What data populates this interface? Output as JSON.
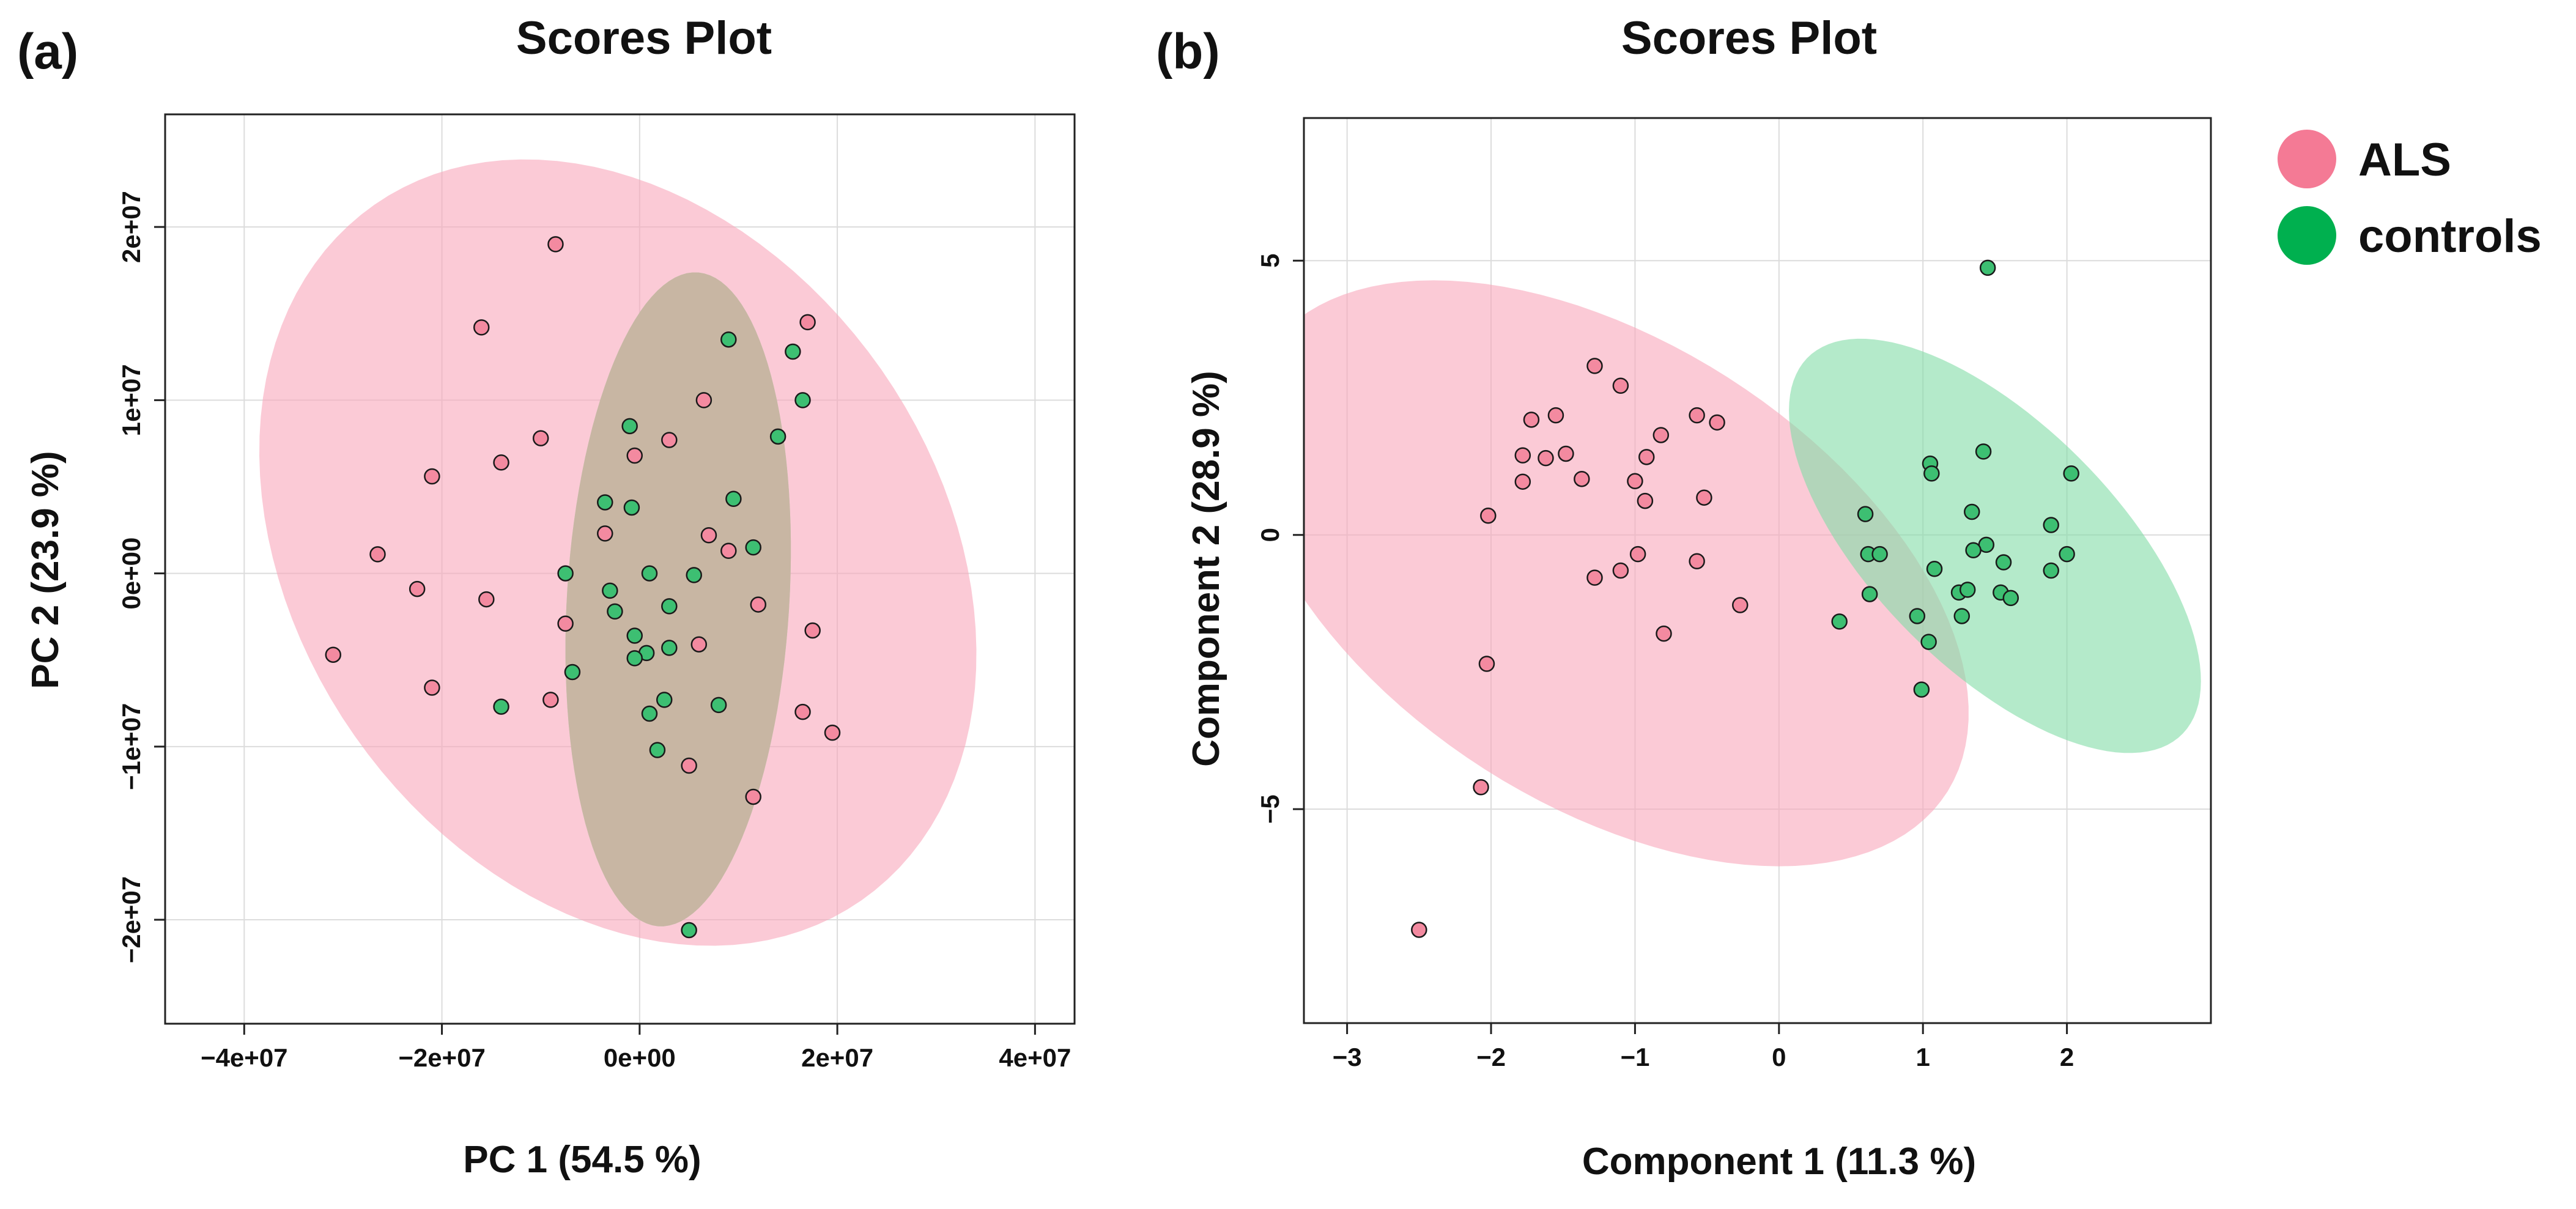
{
  "colors": {
    "ALS": "#f47a95",
    "controls": "#00b04f",
    "ALS_ellipse": "#f8a6ba",
    "controls_ellipse": "#82dca6",
    "overlap": "#c8b6a3",
    "ALS_point": "#f38aa0",
    "controls_point": "#3dbf72",
    "grid": "#dcdcdc"
  },
  "legend": {
    "items": [
      {
        "key": "ALS",
        "label": "ALS"
      },
      {
        "key": "controls",
        "label": "controls"
      }
    ]
  },
  "chart_data": [
    {
      "panel_label": "(a)",
      "type": "scatter",
      "title": "Scores Plot",
      "xlabel": "PC 1 (54.5 %)",
      "ylabel": "PC 2 (23.9 %)",
      "xlim": [
        -48000000.0,
        44000000.0
      ],
      "ylim": [
        -26000000.0,
        26500000.0
      ],
      "xticks": [
        -40000000.0,
        -20000000.0,
        0,
        20000000.0,
        40000000.0
      ],
      "xtick_labels": [
        "−4e+07",
        "−2e+07",
        "0e+00",
        "2e+07",
        "4e+07"
      ],
      "yticks": [
        -20000000.0,
        -10000000.0,
        0,
        10000000.0,
        20000000.0
      ],
      "ytick_labels": [
        "−2e+07",
        "−1e+07",
        "0e+00",
        "1e+07",
        "2e+07"
      ],
      "grid": true,
      "ellipses": [
        {
          "group": "ALS",
          "center": [
            -2200000.0,
            1200000.0
          ],
          "semi_axes": [
            37000000.0,
            21500000.0
          ],
          "angle_deg": -14
        },
        {
          "group": "controls",
          "center": [
            3900000.0,
            -1500000.0
          ],
          "semi_axes": [
            11200000.0,
            19000000.0
          ],
          "angle_deg": -8
        }
      ],
      "series": [
        {
          "name": "ALS",
          "points": [
            [
              -8500000.0,
              19000000.0
            ],
            [
              -16000000.0,
              14200000.0
            ],
            [
              17000000.0,
              14500000.0
            ],
            [
              6500000.0,
              10000000.0
            ],
            [
              -10000000.0,
              7800000.0
            ],
            [
              3000000.0,
              7700000.0
            ],
            [
              -14000000.0,
              6400000.0
            ],
            [
              -500000.0,
              6800000.0
            ],
            [
              -21000000.0,
              5600000.0
            ],
            [
              -3500000.0,
              2300000.0
            ],
            [
              7000000.0,
              2200000.0
            ],
            [
              9000000.0,
              1300000.0
            ],
            [
              -26500000.0,
              1100000.0
            ],
            [
              -22500000.0,
              -900000.0
            ],
            [
              -15500000.0,
              -1500000.0
            ],
            [
              12000000.0,
              -1800000.0
            ],
            [
              -7500000.0,
              -2900000.0
            ],
            [
              17500000.0,
              -3300000.0
            ],
            [
              6000000.0,
              -4100000.0
            ],
            [
              -31000000.0,
              -4700000.0
            ],
            [
              -21000000.0,
              -6600000.0
            ],
            [
              -9000000.0,
              -7300000.0
            ],
            [
              16500000.0,
              -8000000.0
            ],
            [
              19500000.0,
              -9200000.0
            ],
            [
              5000000.0,
              -11100000.0
            ],
            [
              11500000.0,
              -12900000.0
            ]
          ]
        },
        {
          "name": "controls",
          "points": [
            [
              9000000.0,
              13500000.0
            ],
            [
              15500000.0,
              12800000.0
            ],
            [
              16500000.0,
              10000000.0
            ],
            [
              -1000000.0,
              8500000.0
            ],
            [
              14000000.0,
              7900000.0
            ],
            [
              -3500000.0,
              4100000.0
            ],
            [
              9500000.0,
              4300000.0
            ],
            [
              -800000.0,
              3800000.0
            ],
            [
              11500000.0,
              1500000.0
            ],
            [
              -7500000.0,
              0
            ],
            [
              1000000.0,
              0
            ],
            [
              5500000.0,
              -100000.0
            ],
            [
              -3000000.0,
              -1000000.0
            ],
            [
              3000000.0,
              -1900000.0
            ],
            [
              -2500000.0,
              -2200000.0
            ],
            [
              -500000.0,
              -3600000.0
            ],
            [
              3000000.0,
              -4300000.0
            ],
            [
              700000.0,
              -4600000.0
            ],
            [
              -500000.0,
              -4900000.0
            ],
            [
              -6800000.0,
              -5700000.0
            ],
            [
              -14000000.0,
              -7700000.0
            ],
            [
              2500000.0,
              -7300000.0
            ],
            [
              8000000.0,
              -7600000.0
            ],
            [
              1000000.0,
              -8100000.0
            ],
            [
              1800000.0,
              -10200000.0
            ],
            [
              5000000.0,
              -20600000.0
            ]
          ]
        }
      ]
    },
    {
      "panel_label": "(b)",
      "type": "scatter",
      "title": "Scores Plot",
      "xlabel": "Component 1 (11.3 %)",
      "ylabel": "Component 2 (28.9 %)",
      "xlim": [
        -3.3,
        3.0
      ],
      "ylim": [
        -8.9,
        7.6
      ],
      "xticks": [
        -3,
        -2,
        -1,
        0,
        1,
        2
      ],
      "xtick_labels": [
        "−3",
        "−2",
        "−1",
        "0",
        "1",
        "2"
      ],
      "yticks": [
        -5,
        0,
        5
      ],
      "ytick_labels": [
        "−5",
        "0",
        "5"
      ],
      "grid": true,
      "ellipses": [
        {
          "group": "ALS",
          "center": [
            -1.2,
            -0.7
          ],
          "semi_axes": [
            2.15,
            5.5
          ],
          "angle_deg": 15
        },
        {
          "group": "controls",
          "center": [
            1.5,
            -0.2
          ],
          "semi_axes": [
            1.05,
            3.9
          ],
          "angle_deg": 15
        }
      ],
      "series": [
        {
          "name": "ALS",
          "points": [
            [
              -1.28,
              3.08
            ],
            [
              -1.1,
              2.72
            ],
            [
              -1.72,
              2.1
            ],
            [
              -1.55,
              2.18
            ],
            [
              -0.57,
              2.18
            ],
            [
              -0.43,
              2.05
            ],
            [
              -0.82,
              1.82
            ],
            [
              -1.78,
              1.45
            ],
            [
              -1.62,
              1.4
            ],
            [
              -1.48,
              1.48
            ],
            [
              -0.92,
              1.42
            ],
            [
              -1.37,
              1.02
            ],
            [
              -1.78,
              0.97
            ],
            [
              -1.0,
              0.98
            ],
            [
              -0.93,
              0.62
            ],
            [
              -0.52,
              0.68
            ],
            [
              -2.02,
              0.35
            ],
            [
              -0.98,
              -0.35
            ],
            [
              -1.1,
              -0.65
            ],
            [
              -1.28,
              -0.78
            ],
            [
              -0.57,
              -0.48
            ],
            [
              -0.27,
              -1.28
            ],
            [
              -0.8,
              -1.8
            ],
            [
              -2.03,
              -2.35
            ],
            [
              -2.07,
              -4.6
            ],
            [
              -2.5,
              -7.2
            ]
          ]
        },
        {
          "name": "controls",
          "points": [
            [
              1.45,
              4.87
            ],
            [
              1.42,
              1.52
            ],
            [
              1.05,
              1.3
            ],
            [
              1.06,
              1.12
            ],
            [
              2.03,
              1.12
            ],
            [
              0.6,
              0.38
            ],
            [
              1.34,
              0.42
            ],
            [
              1.89,
              0.18
            ],
            [
              0.62,
              -0.35
            ],
            [
              0.7,
              -0.35
            ],
            [
              1.44,
              -0.18
            ],
            [
              1.35,
              -0.28
            ],
            [
              2.0,
              -0.35
            ],
            [
              1.56,
              -0.5
            ],
            [
              1.08,
              -0.62
            ],
            [
              1.89,
              -0.65
            ],
            [
              0.63,
              -1.08
            ],
            [
              1.25,
              -1.05
            ],
            [
              1.31,
              -1.0
            ],
            [
              1.54,
              -1.05
            ],
            [
              1.61,
              -1.15
            ],
            [
              0.42,
              -1.58
            ],
            [
              0.96,
              -1.48
            ],
            [
              1.27,
              -1.48
            ],
            [
              1.04,
              -1.95
            ],
            [
              0.99,
              -2.82
            ]
          ]
        }
      ]
    }
  ]
}
